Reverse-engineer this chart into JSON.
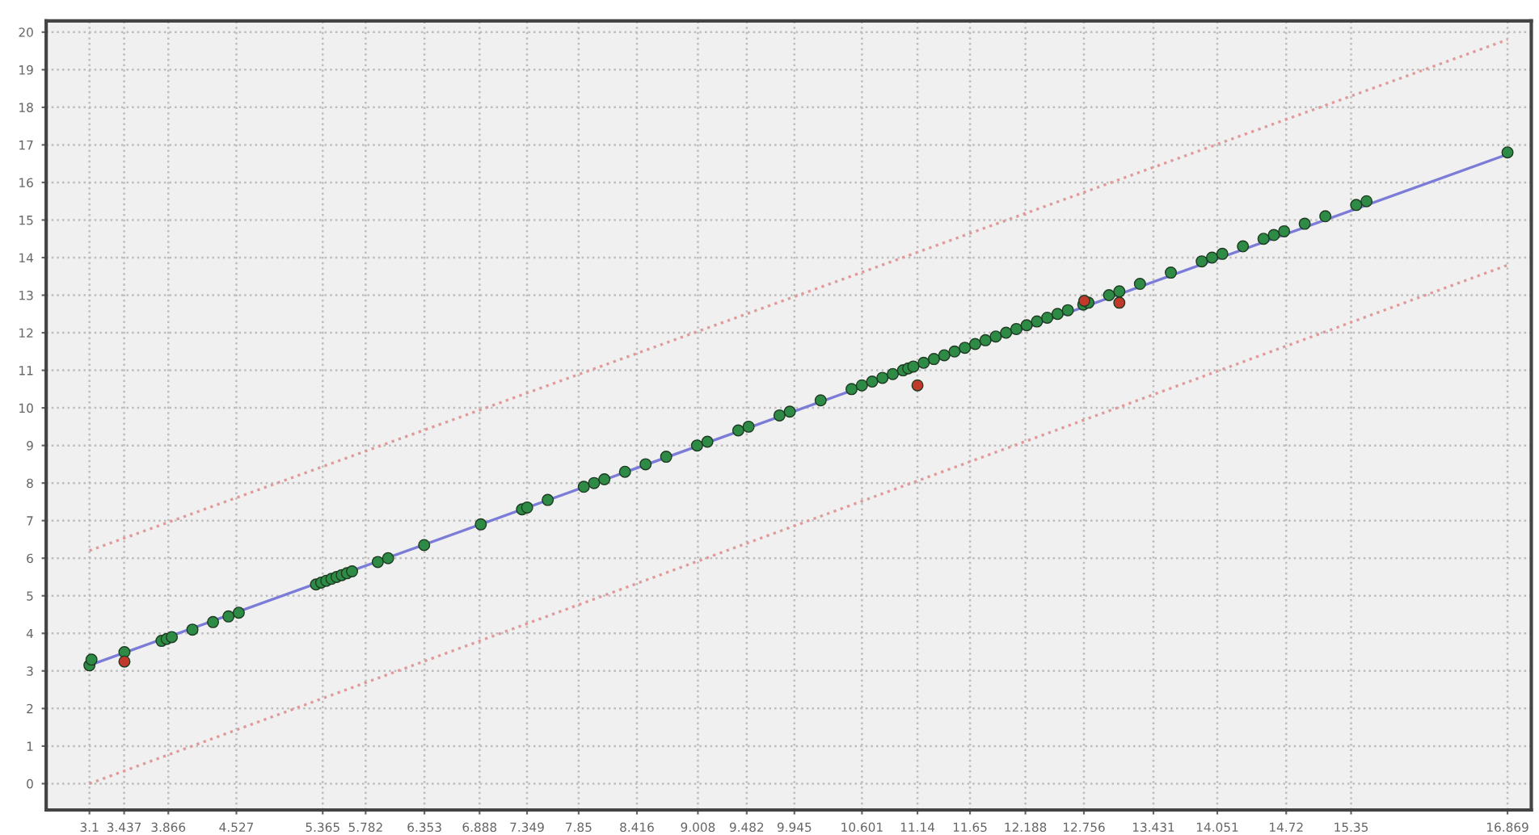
{
  "chart_data": {
    "type": "scatter",
    "grid": true,
    "xlim": [
      2.68,
      17.1
    ],
    "ylim": [
      -0.7,
      20.3
    ],
    "xticks": [
      3.1,
      3.437,
      3.866,
      4.527,
      5.365,
      5.782,
      6.353,
      6.888,
      7.349,
      7.85,
      8.416,
      9.008,
      9.482,
      9.945,
      10.601,
      11.14,
      11.65,
      12.188,
      12.756,
      13.431,
      14.051,
      14.72,
      15.35,
      16.869
    ],
    "yticks": [
      0,
      1,
      2,
      3,
      4,
      5,
      6,
      7,
      8,
      9,
      10,
      11,
      12,
      13,
      14,
      15,
      16,
      17,
      18,
      19,
      20
    ],
    "series": [
      {
        "type": "line",
        "line_style": "dotted",
        "color": "#e09a9a",
        "x": [
          3.1,
          16.869
        ],
        "values": [
          6.2,
          19.8
        ]
      },
      {
        "type": "line",
        "line_style": "dotted",
        "color": "#e09a9a",
        "x": [
          3.1,
          16.869
        ],
        "values": [
          0.0,
          13.8
        ]
      },
      {
        "type": "line",
        "line_style": "solid",
        "color": "#7b7bd8",
        "x": [
          3.1,
          16.869
        ],
        "values": [
          3.15,
          16.75
        ]
      },
      {
        "marker": "circle",
        "color": "#2e8b45",
        "x": [
          3.1,
          3.12,
          3.44,
          3.8,
          3.85,
          3.9,
          4.1,
          4.3,
          4.45,
          4.55,
          5.3,
          5.35,
          5.4,
          5.45,
          5.5,
          5.55,
          5.6,
          5.65,
          5.9,
          6.0,
          6.35,
          6.9,
          7.3,
          7.35,
          7.55,
          7.9,
          8.0,
          8.1,
          8.3,
          8.5,
          8.7,
          9.0,
          9.1,
          9.4,
          9.5,
          9.8,
          9.9,
          10.2,
          10.5,
          10.6,
          10.7,
          10.8,
          10.9,
          11.0,
          11.05,
          11.1,
          11.2,
          11.3,
          11.4,
          11.5,
          11.6,
          11.7,
          11.8,
          11.9,
          12.0,
          12.1,
          12.2,
          12.3,
          12.4,
          12.5,
          12.6,
          12.75,
          12.8,
          13.0,
          13.1,
          13.3,
          13.6,
          13.9,
          14.0,
          14.1,
          14.3,
          14.5,
          14.6,
          14.7,
          14.9,
          15.1,
          15.4,
          15.5,
          16.869
        ],
        "values": [
          3.15,
          3.3,
          3.5,
          3.8,
          3.85,
          3.9,
          4.1,
          4.3,
          4.45,
          4.55,
          5.3,
          5.35,
          5.4,
          5.45,
          5.5,
          5.55,
          5.6,
          5.65,
          5.9,
          6.0,
          6.35,
          6.9,
          7.3,
          7.35,
          7.55,
          7.9,
          8.0,
          8.1,
          8.3,
          8.5,
          8.7,
          9.0,
          9.1,
          9.4,
          9.5,
          9.8,
          9.9,
          10.2,
          10.5,
          10.6,
          10.7,
          10.8,
          10.9,
          11.0,
          11.05,
          11.1,
          11.2,
          11.3,
          11.4,
          11.5,
          11.6,
          11.7,
          11.8,
          11.9,
          12.0,
          12.1,
          12.2,
          12.3,
          12.4,
          12.5,
          12.6,
          12.75,
          12.8,
          13.0,
          13.1,
          13.3,
          13.6,
          13.9,
          14.0,
          14.1,
          14.3,
          14.5,
          14.6,
          14.7,
          14.9,
          15.1,
          15.4,
          15.5,
          16.8
        ]
      },
      {
        "marker": "circle",
        "color": "#c0392b",
        "x": [
          3.44,
          11.14,
          12.76,
          13.1
        ],
        "values": [
          3.25,
          10.6,
          12.85,
          12.8
        ]
      }
    ]
  }
}
